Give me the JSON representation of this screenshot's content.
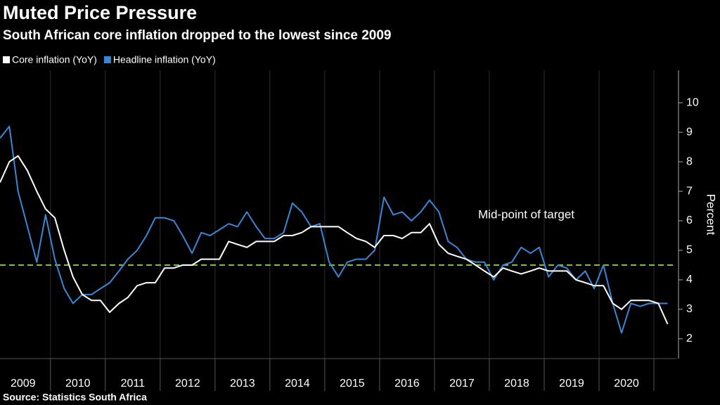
{
  "chart_data": {
    "type": "line",
    "title": "Muted Price Pressure",
    "subtitle": "South African core inflation dropped to the lowest since 2009",
    "y_label": "Percent",
    "source": "Source: Statistics South Africa",
    "x": [
      2009.08,
      2009.25,
      2009.41,
      2009.58,
      2009.75,
      2009.91,
      2010.08,
      2010.25,
      2010.41,
      2010.58,
      2010.75,
      2010.91,
      2011.08,
      2011.25,
      2011.41,
      2011.58,
      2011.75,
      2011.91,
      2012.08,
      2012.25,
      2012.41,
      2012.58,
      2012.75,
      2012.91,
      2013.08,
      2013.25,
      2013.41,
      2013.58,
      2013.75,
      2013.91,
      2014.08,
      2014.25,
      2014.41,
      2014.58,
      2014.75,
      2014.91,
      2015.08,
      2015.25,
      2015.41,
      2015.58,
      2015.75,
      2015.91,
      2016.08,
      2016.25,
      2016.41,
      2016.58,
      2016.75,
      2016.91,
      2017.08,
      2017.25,
      2017.41,
      2017.58,
      2017.75,
      2017.91,
      2018.08,
      2018.25,
      2018.41,
      2018.58,
      2018.75,
      2018.91,
      2019.08,
      2019.25,
      2019.41,
      2019.58,
      2019.75,
      2019.91,
      2020.08,
      2020.25,
      2020.41,
      2020.58,
      2020.75,
      2020.91,
      2021.08,
      2021.25
    ],
    "series": [
      {
        "name": "Core inflation (YoY)",
        "color": "#ffffff",
        "values": [
          7.3,
          8.0,
          8.2,
          7.7,
          7.0,
          6.4,
          6.1,
          5.0,
          4.1,
          3.5,
          3.3,
          3.3,
          2.9,
          3.2,
          3.4,
          3.8,
          3.9,
          3.9,
          4.4,
          4.4,
          4.5,
          4.5,
          4.7,
          4.7,
          4.7,
          5.3,
          5.2,
          5.1,
          5.3,
          5.3,
          5.3,
          5.5,
          5.5,
          5.6,
          5.8,
          5.8,
          5.8,
          5.8,
          5.6,
          5.4,
          5.3,
          5.1,
          5.5,
          5.5,
          5.4,
          5.6,
          5.6,
          5.9,
          5.2,
          4.9,
          4.8,
          4.7,
          4.5,
          4.3,
          4.1,
          4.4,
          4.3,
          4.2,
          4.3,
          4.4,
          4.3,
          4.3,
          4.3,
          4.0,
          3.9,
          3.8,
          3.8,
          3.2,
          3.0,
          3.3,
          3.3,
          3.3,
          3.2,
          2.5
        ]
      },
      {
        "name": "Headline inflation (YoY)",
        "color": "#3a87d8",
        "values": [
          8.8,
          9.2,
          7.0,
          5.8,
          4.6,
          6.2,
          4.7,
          3.7,
          3.2,
          3.5,
          3.5,
          3.7,
          3.9,
          4.3,
          4.7,
          5.0,
          5.5,
          6.1,
          6.1,
          6.0,
          5.5,
          4.9,
          5.6,
          5.5,
          5.7,
          5.9,
          5.8,
          6.3,
          5.8,
          5.4,
          5.4,
          5.6,
          6.6,
          6.3,
          5.8,
          5.9,
          4.6,
          4.1,
          4.6,
          4.7,
          4.7,
          5.0,
          6.8,
          6.2,
          6.3,
          6.0,
          6.3,
          6.7,
          6.3,
          5.3,
          5.1,
          4.7,
          4.6,
          4.6,
          4.0,
          4.5,
          4.6,
          5.1,
          4.9,
          5.1,
          4.1,
          4.5,
          4.4,
          4.0,
          4.3,
          3.7,
          4.5,
          3.2,
          2.2,
          3.2,
          3.1,
          3.2,
          3.2,
          3.2
        ]
      }
    ],
    "xlim": [
      2009.08,
      2021.41
    ],
    "xticks": [
      {
        "value": 2009.5,
        "label": "2009"
      },
      {
        "value": 2010.5,
        "label": "2010"
      },
      {
        "value": 2011.5,
        "label": "2011"
      },
      {
        "value": 2012.5,
        "label": "2012"
      },
      {
        "value": 2013.5,
        "label": "2013"
      },
      {
        "value": 2014.5,
        "label": "2014"
      },
      {
        "value": 2015.5,
        "label": "2015"
      },
      {
        "value": 2016.5,
        "label": "2016"
      },
      {
        "value": 2017.5,
        "label": "2017"
      },
      {
        "value": 2018.5,
        "label": "2018"
      },
      {
        "value": 2019.5,
        "label": "2019"
      },
      {
        "value": 2020.5,
        "label": "2020"
      }
    ],
    "ylim": [
      1.33,
      11.1
    ],
    "yticks": [
      2,
      3,
      4,
      5,
      6,
      7,
      8,
      9,
      10
    ],
    "reference_line": {
      "value": 4.5,
      "label": "Mid-point of target",
      "color": "#7cc242"
    }
  }
}
